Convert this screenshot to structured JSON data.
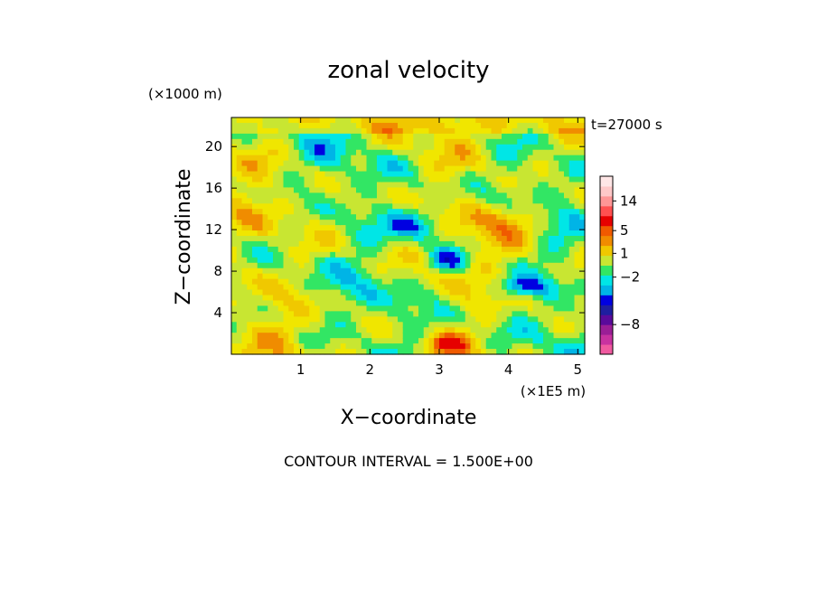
{
  "chart_data": {
    "type": "heatmap",
    "title": "zonal velocity",
    "xlabel": "X−coordinate",
    "ylabel": "Z−coordinate",
    "x_unit": "(×1E5 m)",
    "y_unit": "(×1000 m)",
    "time_label": "t=27000 s",
    "footer": "CONTOUR INTERVAL = 1.500E+00",
    "xlim": [
      0.0,
      5.1
    ],
    "ylim": [
      0,
      22.8
    ],
    "x_ticks": [
      {
        "value": 1,
        "label": "1"
      },
      {
        "value": 2,
        "label": "2"
      },
      {
        "value": 3,
        "label": "3"
      },
      {
        "value": 4,
        "label": "4"
      },
      {
        "value": 5,
        "label": "5"
      }
    ],
    "y_ticks": [
      {
        "value": 4,
        "label": "4"
      },
      {
        "value": 8,
        "label": "8"
      },
      {
        "value": 12,
        "label": "12"
      },
      {
        "value": 16,
        "label": "16"
      },
      {
        "value": 20,
        "label": "20"
      }
    ],
    "colorbar": {
      "colors": [
        "#f05aa0",
        "#c832a0",
        "#9b1e96",
        "#5a0a9b",
        "#1e1ea0",
        "#0000e1",
        "#00b4e6",
        "#00e6e6",
        "#32e664",
        "#c8e632",
        "#f0c800",
        "#f08c00",
        "#f05a00",
        "#e60000",
        "#ff5050",
        "#ff9696",
        "#ffc8c8",
        "#ffe6e6"
      ],
      "tick_labels": [
        {
          "level": "14",
          "label": "14"
        },
        {
          "level": "5",
          "label": "5"
        },
        {
          "level": "1",
          "label": "1"
        },
        {
          "level": "-2",
          "label": "−2"
        },
        {
          "level": "-8",
          "label": "−8"
        }
      ]
    }
  }
}
